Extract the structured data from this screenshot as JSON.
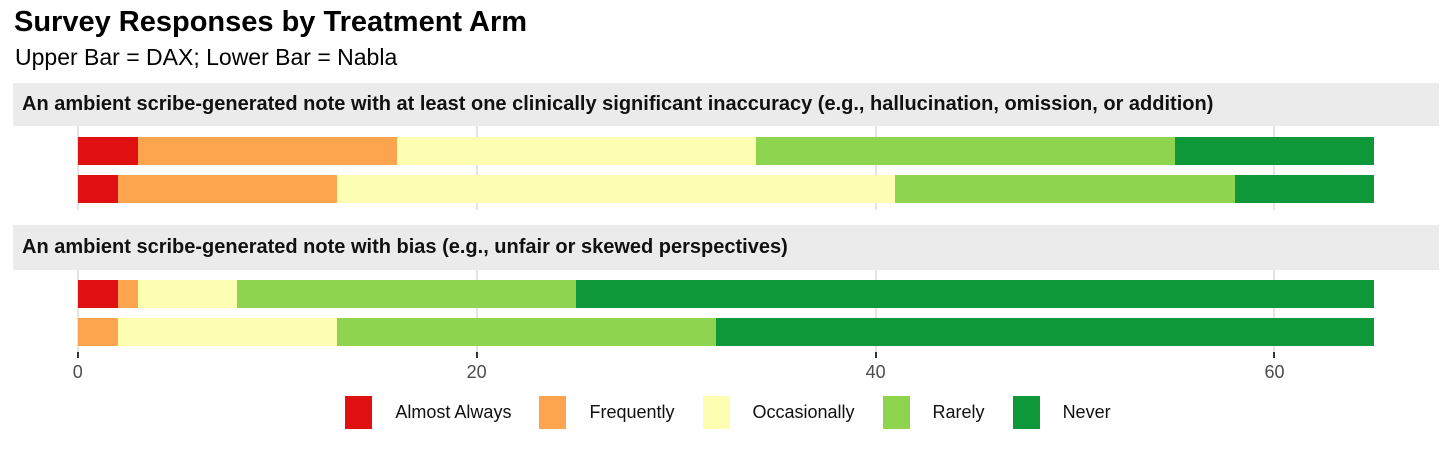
{
  "title": "Survey Responses by Treatment Arm",
  "subtitle": "Upper Bar = DAX; Lower Bar = Nabla",
  "colors": {
    "almost_always": "#e01010",
    "frequently": "#fca54e",
    "occasionally": "#fefeb2",
    "rarely": "#8ed44f",
    "never": "#0f9839",
    "strip_background": "#ebebeb",
    "gridline": "#e4e4e4",
    "axis_text": "#4d4d4d"
  },
  "axis": {
    "tick_labels": [
      "0",
      "20",
      "40",
      "60"
    ]
  },
  "legend": {
    "items": [
      {
        "label": "Almost Always",
        "color": "#e01010"
      },
      {
        "label": "Frequently",
        "color": "#fca54e"
      },
      {
        "label": "Occasionally",
        "color": "#fefeb2"
      },
      {
        "label": "Rarely",
        "color": "#8ed44f"
      },
      {
        "label": "Never",
        "color": "#0f9839"
      }
    ]
  },
  "chart_data": {
    "type": "bar",
    "orientation": "horizontal",
    "stacked": true,
    "title": "Survey Responses by Treatment Arm",
    "subtitle": "Upper Bar = DAX; Lower Bar = Nabla",
    "xlabel": "",
    "ylabel": "",
    "categories": [
      "Almost Always",
      "Frequently",
      "Occasionally",
      "Rarely",
      "Never"
    ],
    "category_colors": {
      "Almost Always": "#e01010",
      "Frequently": "#fca54e",
      "Occasionally": "#fefeb2",
      "Rarely": "#8ed44f",
      "Never": "#0f9839"
    },
    "series_names": [
      "DAX",
      "Nabla"
    ],
    "bar_total": 65,
    "x_ticks": [
      0,
      20,
      40,
      60
    ],
    "xlim": [
      -3.25,
      68.25
    ],
    "grid": true,
    "legend_position": "bottom",
    "panels": [
      {
        "facet_label": "An ambient scribe-generated note with at least one clinically significant inaccuracy (e.g., hallucination, omission, or addition)",
        "bars": [
          {
            "name": "DAX",
            "values": [
              3,
              13,
              18,
              21,
              10
            ]
          },
          {
            "name": "Nabla",
            "values": [
              2,
              11,
              28,
              17,
              7
            ]
          }
        ]
      },
      {
        "facet_label": "An ambient scribe-generated note with bias (e.g., unfair or skewed perspectives)",
        "bars": [
          {
            "name": "DAX",
            "values": [
              2,
              1,
              5,
              17,
              40
            ]
          },
          {
            "name": "Nabla",
            "values": [
              0,
              2,
              11,
              19,
              33
            ]
          }
        ]
      }
    ]
  }
}
